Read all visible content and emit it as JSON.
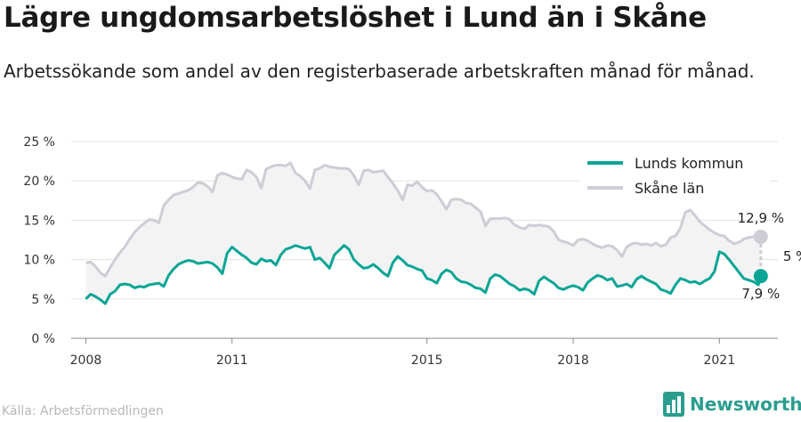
{
  "title": "Lägre ungdomsarbetslöshet i Lund än i Skåne",
  "subtitle": "Arbetssökande som andel av den registerbaserade arbetskraften månad för månad.",
  "source": "Källa: Arbetsförmedlingen",
  "brand": "Newsworthy",
  "colors": {
    "lund": "#0aa595",
    "skane": "#cdcdd6",
    "fill": "#f3f3f4",
    "grid": "#e3e3e3"
  },
  "chart_data": {
    "type": "line",
    "ylim": [
      0,
      25
    ],
    "yticks": [
      0,
      5,
      10,
      15,
      20,
      25
    ],
    "ytick_labels": [
      "0 %",
      "5 %",
      "10 %",
      "15 %",
      "20 %",
      "25 %"
    ],
    "xlim": [
      2007.7,
      2022.2
    ],
    "xticks": [
      2008,
      2011,
      2015,
      2018,
      2021
    ],
    "xtick_labels": [
      "2008",
      "2011",
      "2015",
      "2018",
      "2021"
    ],
    "legend_position": "top-right",
    "grid": true,
    "annotations": {
      "skane_last": "12,9 %",
      "lund_last": "7,9 %",
      "gap": "5 %"
    },
    "series": [
      {
        "name": "Lunds kommun",
        "points": [
          [
            2008.0,
            5.0
          ],
          [
            2008.1,
            5.6
          ],
          [
            2008.2,
            5.3
          ],
          [
            2008.3,
            4.9
          ],
          [
            2008.4,
            4.4
          ],
          [
            2008.5,
            5.6
          ],
          [
            2008.6,
            6.0
          ],
          [
            2008.7,
            6.8
          ],
          [
            2008.8,
            6.9
          ],
          [
            2008.9,
            6.8
          ],
          [
            2009.0,
            6.4
          ],
          [
            2009.1,
            6.6
          ],
          [
            2009.2,
            6.5
          ],
          [
            2009.3,
            6.8
          ],
          [
            2009.4,
            6.9
          ],
          [
            2009.5,
            7.0
          ],
          [
            2009.6,
            6.6
          ],
          [
            2009.7,
            8.0
          ],
          [
            2009.8,
            8.8
          ],
          [
            2009.9,
            9.4
          ],
          [
            2010.0,
            9.7
          ],
          [
            2010.1,
            9.9
          ],
          [
            2010.2,
            9.8
          ],
          [
            2010.3,
            9.5
          ],
          [
            2010.4,
            9.6
          ],
          [
            2010.5,
            9.7
          ],
          [
            2010.6,
            9.5
          ],
          [
            2010.7,
            9.0
          ],
          [
            2010.8,
            8.2
          ],
          [
            2010.9,
            10.8
          ],
          [
            2011.0,
            11.6
          ],
          [
            2011.1,
            11.1
          ],
          [
            2011.2,
            10.6
          ],
          [
            2011.3,
            10.2
          ],
          [
            2011.4,
            9.6
          ],
          [
            2011.5,
            9.4
          ],
          [
            2011.6,
            10.1
          ],
          [
            2011.7,
            9.8
          ],
          [
            2011.8,
            9.9
          ],
          [
            2011.9,
            9.3
          ],
          [
            2012.0,
            10.6
          ],
          [
            2012.1,
            11.3
          ],
          [
            2012.2,
            11.5
          ],
          [
            2012.3,
            11.8
          ],
          [
            2012.4,
            11.6
          ],
          [
            2012.5,
            11.4
          ],
          [
            2012.6,
            11.6
          ],
          [
            2012.7,
            10.0
          ],
          [
            2012.8,
            10.2
          ],
          [
            2012.9,
            9.6
          ],
          [
            2013.0,
            8.9
          ],
          [
            2013.1,
            10.6
          ],
          [
            2013.2,
            11.2
          ],
          [
            2013.3,
            11.8
          ],
          [
            2013.4,
            11.3
          ],
          [
            2013.5,
            10.0
          ],
          [
            2013.6,
            9.4
          ],
          [
            2013.7,
            8.9
          ],
          [
            2013.8,
            9.0
          ],
          [
            2013.9,
            9.4
          ],
          [
            2014.0,
            8.9
          ],
          [
            2014.1,
            8.3
          ],
          [
            2014.2,
            7.9
          ],
          [
            2014.3,
            9.6
          ],
          [
            2014.4,
            10.4
          ],
          [
            2014.5,
            9.9
          ],
          [
            2014.6,
            9.3
          ],
          [
            2014.7,
            9.1
          ],
          [
            2014.8,
            8.8
          ],
          [
            2014.9,
            8.6
          ],
          [
            2015.0,
            7.6
          ],
          [
            2015.1,
            7.4
          ],
          [
            2015.2,
            7.0
          ],
          [
            2015.3,
            8.2
          ],
          [
            2015.4,
            8.7
          ],
          [
            2015.5,
            8.4
          ],
          [
            2015.6,
            7.6
          ],
          [
            2015.7,
            7.2
          ],
          [
            2015.8,
            7.1
          ],
          [
            2015.9,
            6.8
          ],
          [
            2016.0,
            6.4
          ],
          [
            2016.1,
            6.3
          ],
          [
            2016.2,
            5.8
          ],
          [
            2016.3,
            7.6
          ],
          [
            2016.4,
            8.1
          ],
          [
            2016.5,
            7.9
          ],
          [
            2016.6,
            7.4
          ],
          [
            2016.7,
            6.9
          ],
          [
            2016.8,
            6.6
          ],
          [
            2016.9,
            6.1
          ],
          [
            2017.0,
            6.3
          ],
          [
            2017.1,
            6.1
          ],
          [
            2017.2,
            5.6
          ],
          [
            2017.3,
            7.3
          ],
          [
            2017.4,
            7.8
          ],
          [
            2017.5,
            7.4
          ],
          [
            2017.6,
            7.0
          ],
          [
            2017.7,
            6.4
          ],
          [
            2017.8,
            6.2
          ],
          [
            2017.9,
            6.5
          ],
          [
            2018.0,
            6.7
          ],
          [
            2018.1,
            6.5
          ],
          [
            2018.2,
            6.1
          ],
          [
            2018.3,
            7.1
          ],
          [
            2018.4,
            7.6
          ],
          [
            2018.5,
            8.0
          ],
          [
            2018.6,
            7.8
          ],
          [
            2018.7,
            7.4
          ],
          [
            2018.8,
            7.6
          ],
          [
            2018.9,
            6.6
          ],
          [
            2019.0,
            6.7
          ],
          [
            2019.1,
            6.9
          ],
          [
            2019.2,
            6.5
          ],
          [
            2019.3,
            7.5
          ],
          [
            2019.4,
            7.9
          ],
          [
            2019.5,
            7.5
          ],
          [
            2019.6,
            7.2
          ],
          [
            2019.7,
            6.9
          ],
          [
            2019.8,
            6.2
          ],
          [
            2019.9,
            6.0
          ],
          [
            2020.0,
            5.7
          ],
          [
            2020.1,
            6.8
          ],
          [
            2020.2,
            7.6
          ],
          [
            2020.3,
            7.4
          ],
          [
            2020.4,
            7.1
          ],
          [
            2020.5,
            7.2
          ],
          [
            2020.6,
            6.9
          ],
          [
            2020.7,
            7.3
          ],
          [
            2020.8,
            7.6
          ],
          [
            2020.9,
            8.5
          ],
          [
            2021.0,
            11.0
          ],
          [
            2021.1,
            10.7
          ],
          [
            2021.2,
            10.0
          ],
          [
            2021.3,
            9.2
          ],
          [
            2021.4,
            8.4
          ],
          [
            2021.5,
            7.6
          ],
          [
            2021.6,
            7.4
          ],
          [
            2021.7,
            7.2
          ],
          [
            2021.8,
            6.8
          ],
          [
            2021.85,
            7.9
          ]
        ]
      },
      {
        "name": "Skåne län",
        "points": [
          [
            2008.0,
            9.6
          ],
          [
            2008.1,
            9.7
          ],
          [
            2008.2,
            9.1
          ],
          [
            2008.3,
            8.3
          ],
          [
            2008.4,
            7.9
          ],
          [
            2008.5,
            9.0
          ],
          [
            2008.6,
            10.0
          ],
          [
            2008.7,
            10.9
          ],
          [
            2008.8,
            11.6
          ],
          [
            2008.9,
            12.6
          ],
          [
            2009.0,
            13.5
          ],
          [
            2009.1,
            14.1
          ],
          [
            2009.2,
            14.6
          ],
          [
            2009.3,
            15.1
          ],
          [
            2009.4,
            15.0
          ],
          [
            2009.5,
            14.7
          ],
          [
            2009.6,
            16.9
          ],
          [
            2009.7,
            17.6
          ],
          [
            2009.8,
            18.2
          ],
          [
            2009.9,
            18.4
          ],
          [
            2010.0,
            18.6
          ],
          [
            2010.1,
            18.8
          ],
          [
            2010.2,
            19.2
          ],
          [
            2010.3,
            19.8
          ],
          [
            2010.4,
            19.7
          ],
          [
            2010.5,
            19.3
          ],
          [
            2010.6,
            18.6
          ],
          [
            2010.7,
            20.7
          ],
          [
            2010.8,
            21.0
          ],
          [
            2010.9,
            20.8
          ],
          [
            2011.0,
            20.5
          ],
          [
            2011.1,
            20.3
          ],
          [
            2011.2,
            20.2
          ],
          [
            2011.3,
            21.4
          ],
          [
            2011.4,
            21.1
          ],
          [
            2011.5,
            20.5
          ],
          [
            2011.6,
            19.1
          ],
          [
            2011.7,
            21.5
          ],
          [
            2011.8,
            21.8
          ],
          [
            2011.9,
            22.0
          ],
          [
            2012.0,
            22.0
          ],
          [
            2012.1,
            21.9
          ],
          [
            2012.2,
            22.3
          ],
          [
            2012.3,
            21.0
          ],
          [
            2012.4,
            20.6
          ],
          [
            2012.5,
            20.0
          ],
          [
            2012.6,
            19.0
          ],
          [
            2012.7,
            21.4
          ],
          [
            2012.8,
            21.6
          ],
          [
            2012.9,
            22.0
          ],
          [
            2013.0,
            21.8
          ],
          [
            2013.1,
            21.7
          ],
          [
            2013.2,
            21.6
          ],
          [
            2013.3,
            21.6
          ],
          [
            2013.4,
            21.5
          ],
          [
            2013.5,
            20.7
          ],
          [
            2013.6,
            19.5
          ],
          [
            2013.7,
            21.3
          ],
          [
            2013.8,
            21.4
          ],
          [
            2013.9,
            21.1
          ],
          [
            2014.0,
            21.2
          ],
          [
            2014.1,
            21.3
          ],
          [
            2014.2,
            20.5
          ],
          [
            2014.3,
            19.7
          ],
          [
            2014.4,
            18.8
          ],
          [
            2014.5,
            17.6
          ],
          [
            2014.6,
            19.5
          ],
          [
            2014.7,
            19.4
          ],
          [
            2014.8,
            19.9
          ],
          [
            2014.9,
            19.2
          ],
          [
            2015.0,
            18.7
          ],
          [
            2015.1,
            18.8
          ],
          [
            2015.2,
            18.3
          ],
          [
            2015.3,
            17.4
          ],
          [
            2015.4,
            16.4
          ],
          [
            2015.5,
            17.6
          ],
          [
            2015.6,
            17.7
          ],
          [
            2015.7,
            17.6
          ],
          [
            2015.8,
            17.2
          ],
          [
            2015.9,
            17.1
          ],
          [
            2016.0,
            16.6
          ],
          [
            2016.1,
            16.1
          ],
          [
            2016.2,
            14.3
          ],
          [
            2016.3,
            15.2
          ],
          [
            2016.4,
            15.2
          ],
          [
            2016.5,
            15.2
          ],
          [
            2016.6,
            15.3
          ],
          [
            2016.7,
            15.1
          ],
          [
            2016.8,
            14.4
          ],
          [
            2016.9,
            14.1
          ],
          [
            2017.0,
            13.9
          ],
          [
            2017.1,
            14.4
          ],
          [
            2017.2,
            14.3
          ],
          [
            2017.3,
            14.4
          ],
          [
            2017.4,
            14.3
          ],
          [
            2017.5,
            14.2
          ],
          [
            2017.6,
            13.6
          ],
          [
            2017.7,
            12.5
          ],
          [
            2017.8,
            12.3
          ],
          [
            2017.9,
            12.1
          ],
          [
            2018.0,
            11.8
          ],
          [
            2018.1,
            12.5
          ],
          [
            2018.2,
            12.6
          ],
          [
            2018.3,
            12.4
          ],
          [
            2018.4,
            12.0
          ],
          [
            2018.5,
            11.7
          ],
          [
            2018.6,
            11.5
          ],
          [
            2018.7,
            11.8
          ],
          [
            2018.8,
            11.7
          ],
          [
            2018.9,
            11.2
          ],
          [
            2019.0,
            10.4
          ],
          [
            2019.1,
            11.6
          ],
          [
            2019.2,
            12.0
          ],
          [
            2019.3,
            12.1
          ],
          [
            2019.4,
            11.9
          ],
          [
            2019.5,
            12.0
          ],
          [
            2019.6,
            11.8
          ],
          [
            2019.7,
            12.1
          ],
          [
            2019.8,
            11.7
          ],
          [
            2019.9,
            11.9
          ],
          [
            2020.0,
            12.8
          ],
          [
            2020.1,
            13.0
          ],
          [
            2020.2,
            14.0
          ],
          [
            2020.3,
            16.0
          ],
          [
            2020.4,
            16.3
          ],
          [
            2020.5,
            15.6
          ],
          [
            2020.6,
            14.8
          ],
          [
            2020.7,
            14.3
          ],
          [
            2020.8,
            13.8
          ],
          [
            2020.9,
            13.4
          ],
          [
            2021.0,
            13.1
          ],
          [
            2021.1,
            13.0
          ],
          [
            2021.2,
            12.4
          ],
          [
            2021.3,
            12.0
          ],
          [
            2021.4,
            12.2
          ],
          [
            2021.5,
            12.6
          ],
          [
            2021.6,
            12.8
          ],
          [
            2021.7,
            12.9
          ],
          [
            2021.8,
            12.9
          ],
          [
            2021.85,
            12.9
          ]
        ]
      }
    ]
  }
}
